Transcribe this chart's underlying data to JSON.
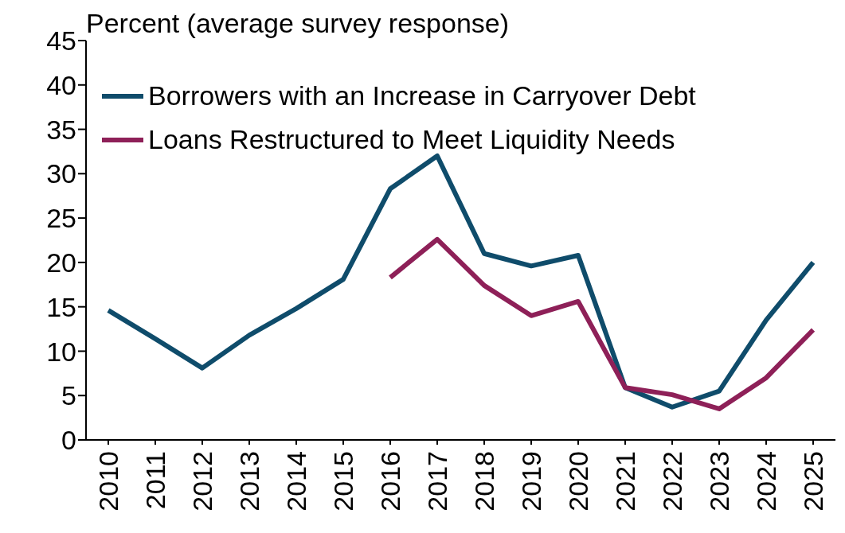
{
  "chart_data": {
    "type": "line",
    "ylabel": "Percent (average survey response)",
    "categories": [
      "2010",
      "2011",
      "2012",
      "2013",
      "2014",
      "2015",
      "2016",
      "2017",
      "2018",
      "2019",
      "2020",
      "2021",
      "2022",
      "2023",
      "2024",
      "2025"
    ],
    "series": [
      {
        "name": "Borrowers with an Increase in Carryover Debt",
        "color": "#0f4c6b",
        "values": [
          14.6,
          11.4,
          8.1,
          11.8,
          14.8,
          18.1,
          28.3,
          32.0,
          21.0,
          19.6,
          20.8,
          5.9,
          3.7,
          5.5,
          13.5,
          20.0
        ]
      },
      {
        "name": "Loans Restructured to Meet Liquidity Needs",
        "color": "#8e2058",
        "values": [
          null,
          null,
          null,
          null,
          null,
          null,
          18.3,
          22.6,
          17.4,
          14.0,
          15.6,
          5.9,
          5.1,
          3.5,
          7.0,
          12.4
        ]
      }
    ],
    "ylim": [
      0,
      45
    ],
    "yticks": [
      0,
      5,
      10,
      15,
      20,
      25,
      30,
      35,
      40,
      45
    ],
    "grid": false,
    "legend": "top left",
    "marker": "none",
    "line_style": "solid"
  }
}
